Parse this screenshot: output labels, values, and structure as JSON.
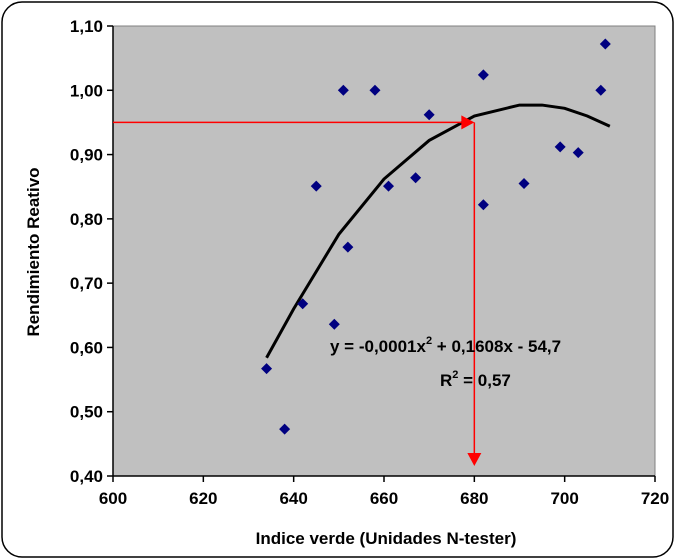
{
  "chart_data": {
    "type": "scatter",
    "xlabel": "Indice verde (Unidades N-tester)",
    "ylabel": "Rendimiento Reativo",
    "xlim": [
      600,
      720
    ],
    "ylim": [
      0.4,
      1.1
    ],
    "x_ticks": [
      "600",
      "620",
      "640",
      "660",
      "680",
      "700",
      "720"
    ],
    "y_ticks": [
      "0,40",
      "0,50",
      "0,60",
      "0,70",
      "0,80",
      "0,90",
      "1,00",
      "1,10"
    ],
    "grid": false,
    "plot_background": "#c0c0c0",
    "marker_color": "#000080",
    "arrow_color": "#ff0000",
    "points": [
      {
        "x": 634,
        "y": 0.567
      },
      {
        "x": 638,
        "y": 0.473
      },
      {
        "x": 642,
        "y": 0.668
      },
      {
        "x": 645,
        "y": 0.851
      },
      {
        "x": 649,
        "y": 0.636
      },
      {
        "x": 651,
        "y": 1.0
      },
      {
        "x": 652,
        "y": 0.756
      },
      {
        "x": 658,
        "y": 1.0
      },
      {
        "x": 661,
        "y": 0.851
      },
      {
        "x": 667,
        "y": 0.864
      },
      {
        "x": 670,
        "y": 0.962
      },
      {
        "x": 682,
        "y": 1.024
      },
      {
        "x": 682,
        "y": 0.822
      },
      {
        "x": 691,
        "y": 0.855
      },
      {
        "x": 699,
        "y": 0.912
      },
      {
        "x": 703,
        "y": 0.903
      },
      {
        "x": 708,
        "y": 1.0
      },
      {
        "x": 709,
        "y": 1.072
      }
    ],
    "trendline": {
      "type": "polynomial-2",
      "x_range": [
        634,
        710
      ],
      "curve": [
        {
          "x": 634,
          "y": 0.584
        },
        {
          "x": 640,
          "y": 0.66
        },
        {
          "x": 650,
          "y": 0.776
        },
        {
          "x": 660,
          "y": 0.862
        },
        {
          "x": 670,
          "y": 0.922
        },
        {
          "x": 680,
          "y": 0.96
        },
        {
          "x": 690,
          "y": 0.977
        },
        {
          "x": 695,
          "y": 0.977
        },
        {
          "x": 700,
          "y": 0.972
        },
        {
          "x": 705,
          "y": 0.96
        },
        {
          "x": 710,
          "y": 0.944
        }
      ],
      "equation": {
        "prefix": "y = -0,0001x",
        "exponent": "2",
        "suffix": " + 0,1608x - 54,7"
      },
      "r2": {
        "prefix": "R",
        "exponent": "2",
        "suffix": " = 0,57"
      }
    },
    "reference_arrows": {
      "y_value": 0.95,
      "x_value": 680,
      "y_end": 0.4
    }
  }
}
